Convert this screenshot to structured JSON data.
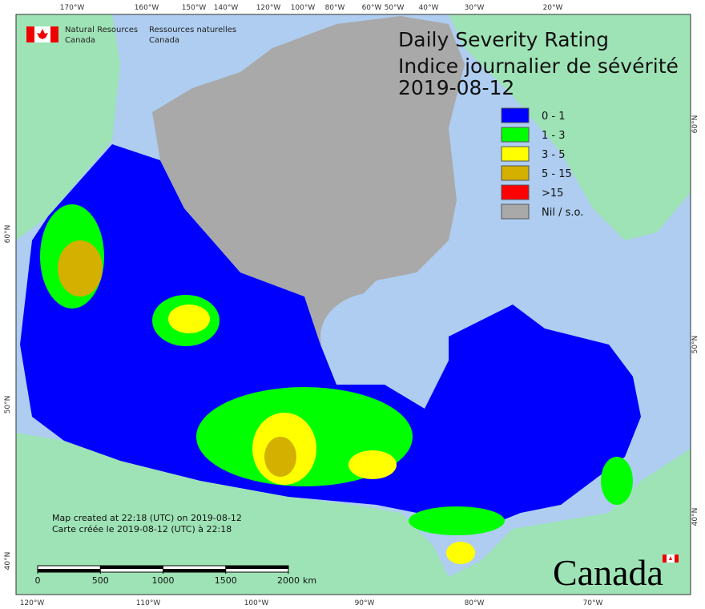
{
  "header": {
    "org_en_1": "Natural Resources",
    "org_en_2": "Canada",
    "org_fr_1": "Ressources naturelles",
    "org_fr_2": "Canada"
  },
  "title": {
    "line1": "Daily Severity Rating",
    "line2": "Indice journalier de sévérité",
    "date": "2019-08-12"
  },
  "legend": [
    {
      "label": "0 - 1",
      "color": "#0000ff"
    },
    {
      "label": "1 - 3",
      "color": "#00ff00"
    },
    {
      "label": "3 - 5",
      "color": "#ffff00"
    },
    {
      "label": "5 - 15",
      "color": "#d4b000"
    },
    {
      "label": ">15",
      "color": "#ff0000"
    },
    {
      "label": "Nil / s.o.",
      "color": "#a9a9a9"
    }
  ],
  "graticule": {
    "top": [
      "170°W",
      "160°W",
      "150°W",
      "140°W",
      "120°W",
      "100°W",
      "80°W",
      "60°W",
      "50°W",
      "40°W",
      "30°W",
      "20°W"
    ],
    "bottom": [
      "120°W",
      "110°W",
      "100°W",
      "90°W",
      "80°W",
      "70°W"
    ],
    "left": [
      "60°N",
      "50°N",
      "40°N"
    ],
    "right": [
      "60°N",
      "50°N",
      "40°N"
    ]
  },
  "footer": {
    "created_en": "Map created at 22:18 (UTC) on 2019-08-12",
    "created_fr": "Carte créée le 2019-08-12 (UTC) à 22:18"
  },
  "scale_bar": {
    "ticks": [
      0,
      500,
      1000,
      1500,
      2000
    ],
    "unit": "km"
  },
  "wordmark": "Canada"
}
